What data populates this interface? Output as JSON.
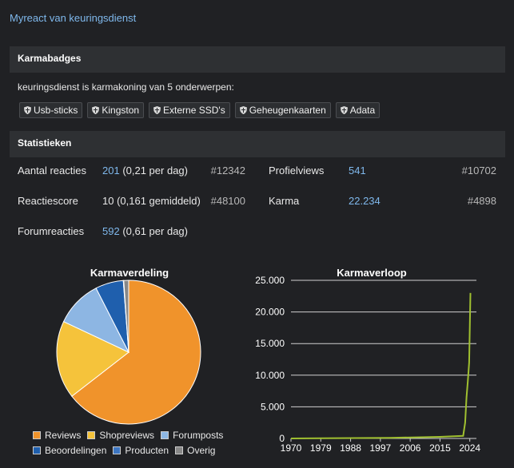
{
  "top_link": "Myreact van keuringsdienst",
  "karmabadges": {
    "header": "Karmabadges",
    "intro": "keuringsdienst is karmakoning van 5 onderwerpen:",
    "badges": [
      "Usb-sticks",
      "Kingston",
      "Externe SSD's",
      "Geheugenkaarten",
      "Adata"
    ],
    "badge_icon": "shield-icon"
  },
  "statistieken": {
    "header": "Statistieken",
    "aantal_reacties": {
      "label": "Aantal reacties",
      "value": "201",
      "extra": " (0,21 per dag)",
      "rank": "#12342"
    },
    "profielviews": {
      "label": "Profielviews",
      "value": "541",
      "rank": "#10702"
    },
    "reactiescore": {
      "label": "Reactiescore",
      "value": "10 (0,161 gemiddeld)",
      "rank": "#48100"
    },
    "karma": {
      "label": "Karma",
      "value": "22.234",
      "rank": "#4898"
    },
    "forumreacties": {
      "label": "Forumreacties",
      "value": "592",
      "extra": " (0,61 per dag)"
    }
  },
  "colors": {
    "link": "#7fb8ec",
    "reviews": "#f0932b",
    "shopreviews": "#f5c33b",
    "forumposts": "#8db6e3",
    "beoordelingen": "#1f5fad",
    "producten": "#3d76c2",
    "overig": "#888888",
    "line": "#a0c030"
  },
  "chart_data": [
    {
      "type": "pie",
      "title": "Karmaverdeling",
      "categories": [
        "Reviews",
        "Shopreviews",
        "Forumposts",
        "Beoordelingen",
        "Producten",
        "Overig"
      ],
      "values": [
        64.5,
        17.5,
        10.5,
        6.3,
        0.1,
        1.1
      ],
      "legend_position": "bottom"
    },
    {
      "type": "line",
      "title": "Karmaverloop",
      "x_ticks": [
        "1970",
        "1979",
        "1988",
        "1997",
        "2006",
        "2015",
        "2024"
      ],
      "y_ticks": [
        "0",
        "5.000",
        "10.000",
        "15.000",
        "20.000",
        "25.000"
      ],
      "ylim": [
        0,
        25000
      ],
      "xlim": [
        1970,
        2026
      ],
      "grid": true,
      "series": [
        {
          "x": [
            1970,
            2000,
            2015,
            2022,
            2022.6,
            2023.0,
            2023.4,
            2023.8,
            2024.2
          ],
          "y": [
            0,
            100,
            250,
            400,
            2500,
            6500,
            9000,
            12000,
            23000
          ]
        }
      ]
    }
  ]
}
